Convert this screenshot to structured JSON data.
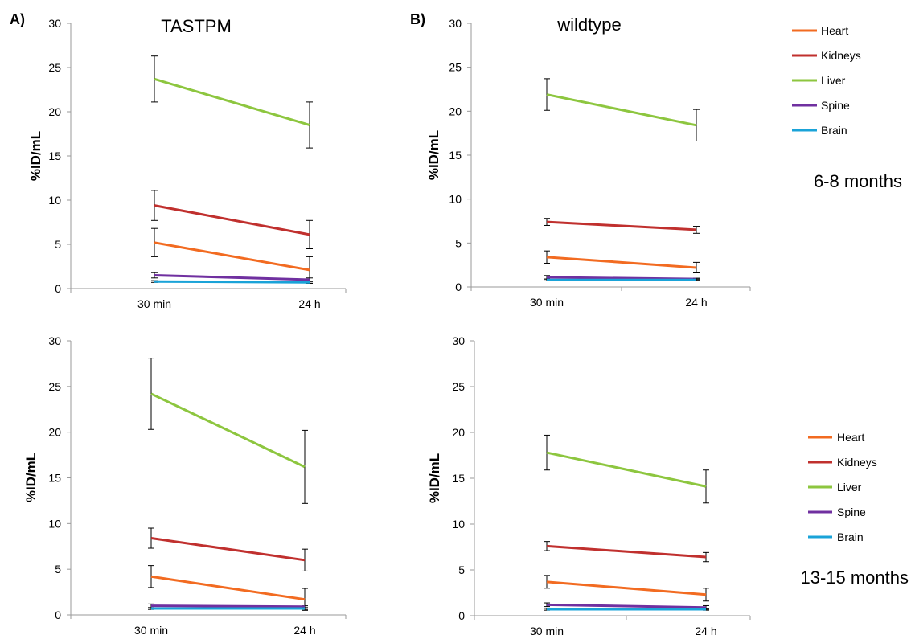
{
  "panel_labels": [
    "A)",
    "B)"
  ],
  "column_titles": [
    "TASTPM",
    "wildtype"
  ],
  "age_labels": [
    "6-8 months",
    "13-15 months"
  ],
  "legend": [
    {
      "name": "Heart",
      "color": "#F26B21"
    },
    {
      "name": "Kidneys",
      "color": "#C0302E"
    },
    {
      "name": "Liver",
      "color": "#8DC63F"
    },
    {
      "name": "Spine",
      "color": "#7030A0"
    },
    {
      "name": "Brain",
      "color": "#1AA3D8"
    }
  ],
  "chart_data": [
    {
      "type": "line",
      "title": "TASTPM",
      "panel": "A)",
      "ylabel": "%ID/mL",
      "categories": [
        "30 min",
        "24 h"
      ],
      "ylim": [
        0,
        30
      ],
      "yticks": [
        0,
        5,
        10,
        15,
        20,
        25,
        30
      ],
      "series": [
        {
          "name": "Heart",
          "color": "#F26B21",
          "values": [
            5.2,
            2.1
          ],
          "errors": [
            1.6,
            1.5
          ]
        },
        {
          "name": "Kidneys",
          "color": "#C0302E",
          "values": [
            9.4,
            6.1
          ],
          "errors": [
            1.7,
            1.6
          ]
        },
        {
          "name": "Liver",
          "color": "#8DC63F",
          "values": [
            23.7,
            18.5
          ],
          "errors": [
            2.6,
            2.6
          ]
        },
        {
          "name": "Spine",
          "color": "#7030A0",
          "values": [
            1.5,
            1.0
          ],
          "errors": [
            0.3,
            0.2
          ]
        },
        {
          "name": "Brain",
          "color": "#1AA3D8",
          "values": [
            0.8,
            0.7
          ],
          "errors": [
            0.1,
            0.1
          ]
        }
      ]
    },
    {
      "type": "line",
      "title": "wildtype",
      "panel": "B)",
      "ylabel": "%ID/mL",
      "categories": [
        "30 min",
        "24 h"
      ],
      "ylim": [
        0,
        30
      ],
      "yticks": [
        0,
        5,
        10,
        15,
        20,
        25,
        30
      ],
      "series": [
        {
          "name": "Heart",
          "color": "#F26B21",
          "values": [
            3.4,
            2.2
          ],
          "errors": [
            0.7,
            0.6
          ]
        },
        {
          "name": "Kidneys",
          "color": "#C0302E",
          "values": [
            7.4,
            6.5
          ],
          "errors": [
            0.4,
            0.4
          ]
        },
        {
          "name": "Liver",
          "color": "#8DC63F",
          "values": [
            21.9,
            18.4
          ],
          "errors": [
            1.8,
            1.8
          ]
        },
        {
          "name": "Spine",
          "color": "#7030A0",
          "values": [
            1.1,
            0.9
          ],
          "errors": [
            0.2,
            0.1
          ]
        },
        {
          "name": "Brain",
          "color": "#1AA3D8",
          "values": [
            0.8,
            0.8
          ],
          "errors": [
            0.1,
            0.1
          ]
        }
      ]
    },
    {
      "type": "line",
      "ylabel": "%ID/mL",
      "categories": [
        "30 min",
        "24 h"
      ],
      "ylim": [
        0,
        30
      ],
      "yticks": [
        0,
        5,
        10,
        15,
        20,
        25,
        30
      ],
      "series": [
        {
          "name": "Heart",
          "color": "#F26B21",
          "values": [
            4.2,
            1.7
          ],
          "errors": [
            1.2,
            1.2
          ]
        },
        {
          "name": "Kidneys",
          "color": "#C0302E",
          "values": [
            8.4,
            6.0
          ],
          "errors": [
            1.1,
            1.2
          ]
        },
        {
          "name": "Liver",
          "color": "#8DC63F",
          "values": [
            24.2,
            16.2
          ],
          "errors": [
            3.9,
            4.0
          ]
        },
        {
          "name": "Spine",
          "color": "#7030A0",
          "values": [
            1.0,
            0.9
          ],
          "errors": [
            0.2,
            0.1
          ]
        },
        {
          "name": "Brain",
          "color": "#1AA3D8",
          "values": [
            0.7,
            0.7
          ],
          "errors": [
            0.1,
            0.1
          ]
        }
      ]
    },
    {
      "type": "line",
      "ylabel": "%ID/mL",
      "categories": [
        "30 min",
        "24 h"
      ],
      "ylim": [
        0,
        30
      ],
      "yticks": [
        0,
        5,
        10,
        15,
        20,
        25,
        30
      ],
      "series": [
        {
          "name": "Heart",
          "color": "#F26B21",
          "values": [
            3.7,
            2.3
          ],
          "errors": [
            0.7,
            0.7
          ]
        },
        {
          "name": "Kidneys",
          "color": "#C0302E",
          "values": [
            7.6,
            6.4
          ],
          "errors": [
            0.5,
            0.5
          ]
        },
        {
          "name": "Liver",
          "color": "#8DC63F",
          "values": [
            17.8,
            14.1
          ],
          "errors": [
            1.9,
            1.8
          ]
        },
        {
          "name": "Spine",
          "color": "#7030A0",
          "values": [
            1.2,
            0.9
          ],
          "errors": [
            0.2,
            0.2
          ]
        },
        {
          "name": "Brain",
          "color": "#1AA3D8",
          "values": [
            0.7,
            0.7
          ],
          "errors": [
            0.1,
            0.1
          ]
        }
      ]
    }
  ]
}
